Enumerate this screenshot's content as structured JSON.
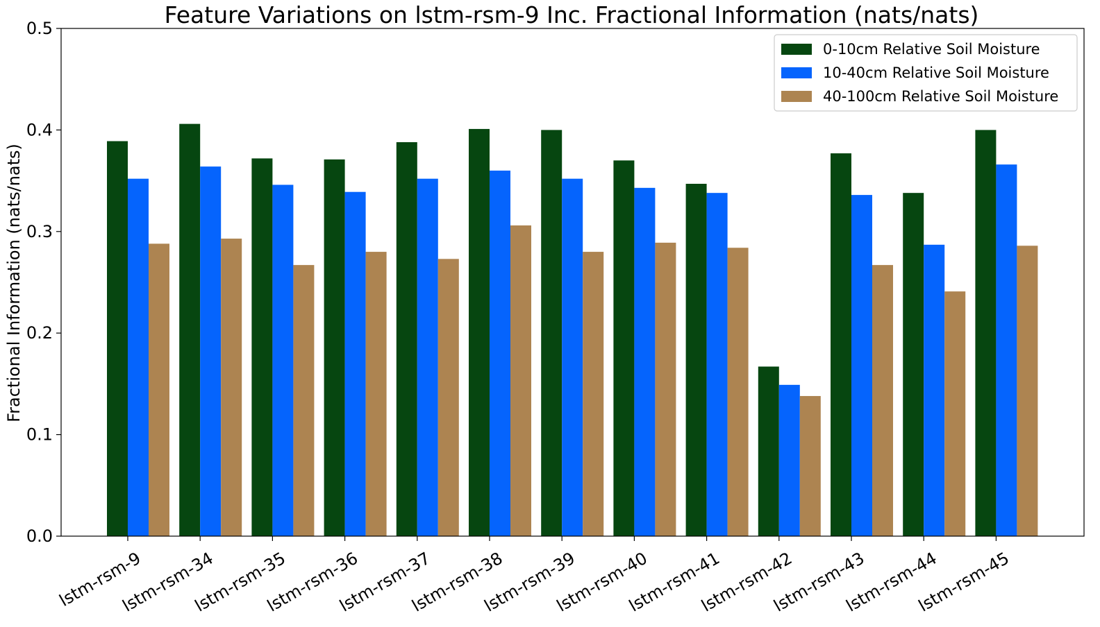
{
  "chart_data": {
    "type": "bar",
    "title": "Feature Variations on lstm-rsm-9 Inc. Fractional Information (nats/nats)",
    "xlabel": "",
    "ylabel": "Fractional Information (nats/nats)",
    "ylim": [
      0,
      0.5
    ],
    "yticks": [
      "0.0",
      "0.1",
      "0.2",
      "0.3",
      "0.4",
      "0.5"
    ],
    "grid": false,
    "legend_position": "top-right",
    "categories": [
      "lstm-rsm-9",
      "lstm-rsm-34",
      "lstm-rsm-35",
      "lstm-rsm-36",
      "lstm-rsm-37",
      "lstm-rsm-38",
      "lstm-rsm-39",
      "lstm-rsm-40",
      "lstm-rsm-41",
      "lstm-rsm-42",
      "lstm-rsm-43",
      "lstm-rsm-44",
      "lstm-rsm-45"
    ],
    "series": [
      {
        "name": "0-10cm Relative Soil Moisture",
        "color": "#064610",
        "values": [
          0.389,
          0.406,
          0.372,
          0.371,
          0.388,
          0.401,
          0.4,
          0.37,
          0.347,
          0.167,
          0.377,
          0.338,
          0.4
        ]
      },
      {
        "name": "10-40cm Relative Soil Moisture",
        "color": "#0564FD",
        "values": [
          0.352,
          0.364,
          0.346,
          0.339,
          0.352,
          0.36,
          0.352,
          0.343,
          0.338,
          0.149,
          0.336,
          0.287,
          0.366
        ]
      },
      {
        "name": "40-100cm Relative Soil Moisture",
        "color": "#AD8451",
        "values": [
          0.288,
          0.293,
          0.267,
          0.28,
          0.273,
          0.306,
          0.28,
          0.289,
          0.284,
          0.138,
          0.267,
          0.241,
          0.286
        ]
      }
    ]
  }
}
